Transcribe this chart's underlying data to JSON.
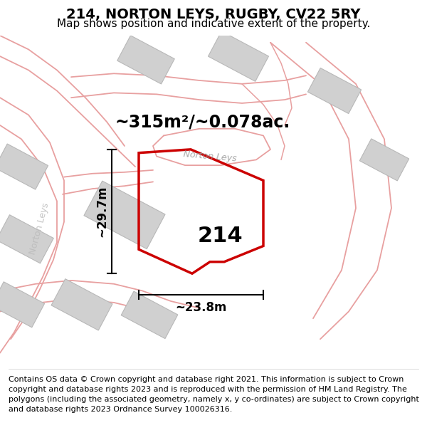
{
  "title": "214, NORTON LEYS, RUGBY, CV22 5RY",
  "subtitle": "Map shows position and indicative extent of the property.",
  "footer": "Contains OS data © Crown copyright and database right 2021. This information is subject to Crown copyright and database rights 2023 and is reproduced with the permission of HM Land Registry. The polygons (including the associated geometry, namely x, y co-ordinates) are subject to Crown copyright and database rights 2023 Ordnance Survey 100026316.",
  "area_label": "~315m²/~0.078ac.",
  "height_label": "~29.7m",
  "width_label": "~23.8m",
  "plot_number": "214",
  "road_label_norton": "Norton Leys",
  "bg_color": "#ffffff",
  "road_stroke": "#e8a0a0",
  "road_fill": "#f5e8e8",
  "building_color": "#d0d0d0",
  "building_stroke": "#b8b8b8",
  "plot_color": "#cc0000",
  "title_fontsize": 14,
  "subtitle_fontsize": 11,
  "footer_fontsize": 8.0,
  "area_fontsize": 17,
  "dim_fontsize": 12,
  "plot_num_fontsize": 22
}
